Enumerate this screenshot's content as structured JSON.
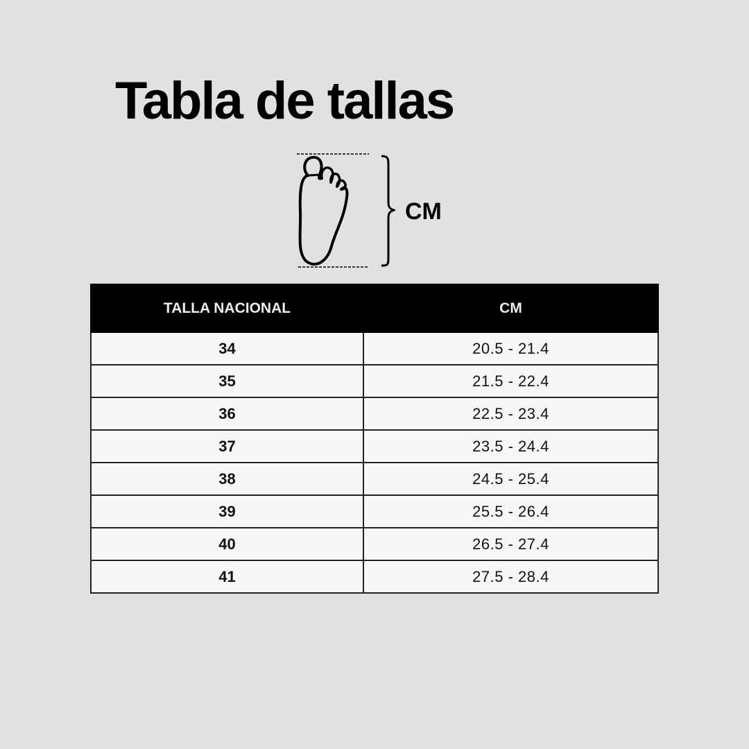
{
  "title": "Tabla de tallas",
  "diagram": {
    "icon": "foot-icon",
    "measure_label": "CM"
  },
  "table": {
    "headers": [
      "TALLA NACIONAL",
      "CM"
    ],
    "rows": [
      {
        "size": "34",
        "cm": "20.5 - 21.4"
      },
      {
        "size": "35",
        "cm": "21.5 - 22.4"
      },
      {
        "size": "36",
        "cm": "22.5 - 23.4"
      },
      {
        "size": "37",
        "cm": "23.5 - 24.4"
      },
      {
        "size": "38",
        "cm": "24.5 - 25.4"
      },
      {
        "size": "39",
        "cm": "25.5 - 26.4"
      },
      {
        "size": "40",
        "cm": "26.5 - 27.4"
      },
      {
        "size": "41",
        "cm": "27.5 - 28.4"
      }
    ]
  },
  "colors": {
    "background": "#e1e1e1",
    "header": "#000000",
    "row": "#f8f6f7"
  }
}
